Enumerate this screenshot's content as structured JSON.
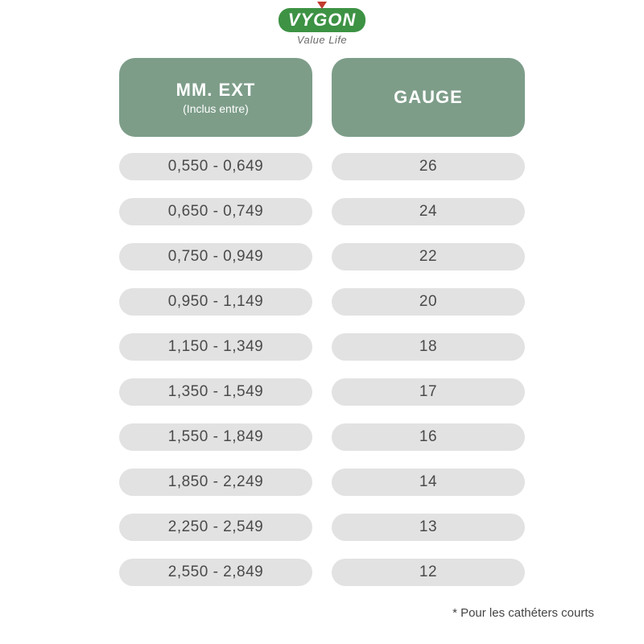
{
  "brand": {
    "logo_text": "VYGON",
    "tagline": "Value Life",
    "logo_bg": "#3d9244",
    "triangle_color": "#c23a2f"
  },
  "table": {
    "header_bg": "#7d9d89",
    "header_fg": "#ffffff",
    "pill_bg": "#e2e2e2",
    "pill_fg": "#4a4a4a",
    "col1": {
      "title": "MM. EXT",
      "subtitle": "(Inclus entre)"
    },
    "col2": {
      "title": "GAUGE",
      "subtitle": ""
    },
    "rows": [
      {
        "mm": "0,550 - 0,649",
        "gauge": "26"
      },
      {
        "mm": "0,650 - 0,749",
        "gauge": "24"
      },
      {
        "mm": "0,750 - 0,949",
        "gauge": "22"
      },
      {
        "mm": "0,950 - 1,149",
        "gauge": "20"
      },
      {
        "mm": "1,150 - 1,349",
        "gauge": "18"
      },
      {
        "mm": "1,350 - 1,549",
        "gauge": "17"
      },
      {
        "mm": "1,550 - 1,849",
        "gauge": "16"
      },
      {
        "mm": "1,850 - 2,249",
        "gauge": "14"
      },
      {
        "mm": "2,250 - 2,549",
        "gauge": "13"
      },
      {
        "mm": "2,550 - 2,849",
        "gauge": "12"
      }
    ]
  },
  "footnote": "*  Pour les cathéters courts"
}
